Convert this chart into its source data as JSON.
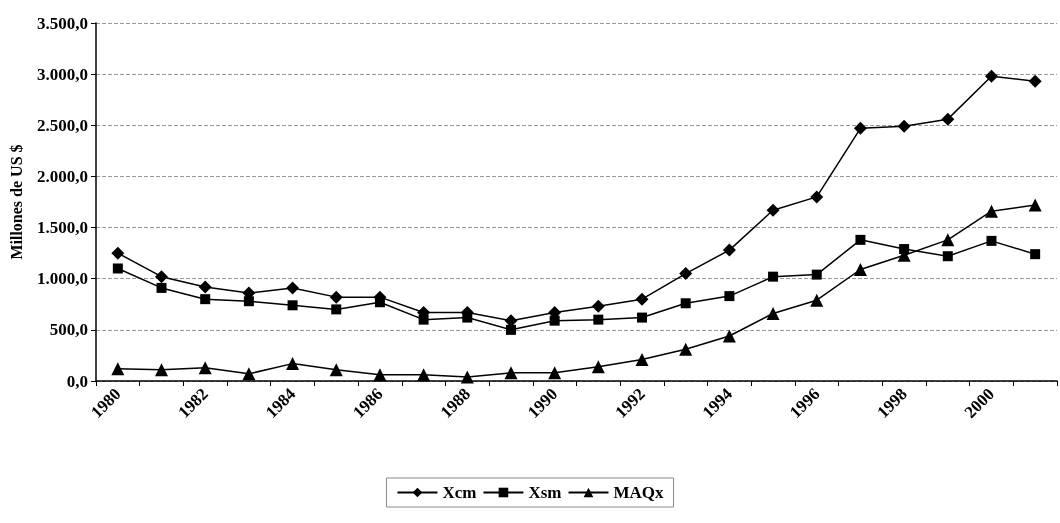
{
  "chart_data": {
    "type": "line",
    "ylabel": "Millones de US $",
    "categories": [
      "1980",
      null,
      "1982",
      null,
      "1984",
      null,
      "1986",
      null,
      "1988",
      null,
      "1990",
      null,
      "1992",
      null,
      "1994",
      null,
      "1996",
      null,
      "1998",
      null,
      "2000",
      null
    ],
    "series": [
      {
        "name": "Xcm",
        "color": "#000000",
        "marker": "diamond",
        "values": [
          1250,
          1020,
          920,
          860,
          910,
          820,
          820,
          670,
          670,
          590,
          670,
          730,
          800,
          1050,
          1280,
          1670,
          1800,
          2470,
          2490,
          2560,
          2980,
          2930
        ]
      },
      {
        "name": "Xsm",
        "color": "#000000",
        "marker": "square",
        "values": [
          1100,
          910,
          800,
          780,
          740,
          700,
          770,
          600,
          620,
          500,
          590,
          600,
          620,
          760,
          830,
          1020,
          1040,
          1380,
          1290,
          1220,
          1370,
          1240
        ]
      },
      {
        "name": "MAQx",
        "color": "#000000",
        "marker": "triangle",
        "values": [
          120,
          110,
          130,
          70,
          170,
          110,
          60,
          60,
          40,
          80,
          80,
          140,
          210,
          310,
          440,
          660,
          790,
          1090,
          1230,
          1380,
          1660,
          1720
        ]
      }
    ],
    "ylim": [
      0,
      3500
    ],
    "yticks": [
      {
        "value": 0,
        "label": "0,0"
      },
      {
        "value": 500,
        "label": "500,0"
      },
      {
        "value": 1000,
        "label": "1.000,0"
      },
      {
        "value": 1500,
        "label": "1.500,0"
      },
      {
        "value": 2000,
        "label": "2.000,0"
      },
      {
        "value": 2500,
        "label": "2.500,0"
      },
      {
        "value": 3000,
        "label": "3.000,0"
      },
      {
        "value": 3500,
        "label": "3.500,0"
      }
    ],
    "grid": "y",
    "legend": "bottom",
    "line_style": "solid"
  }
}
